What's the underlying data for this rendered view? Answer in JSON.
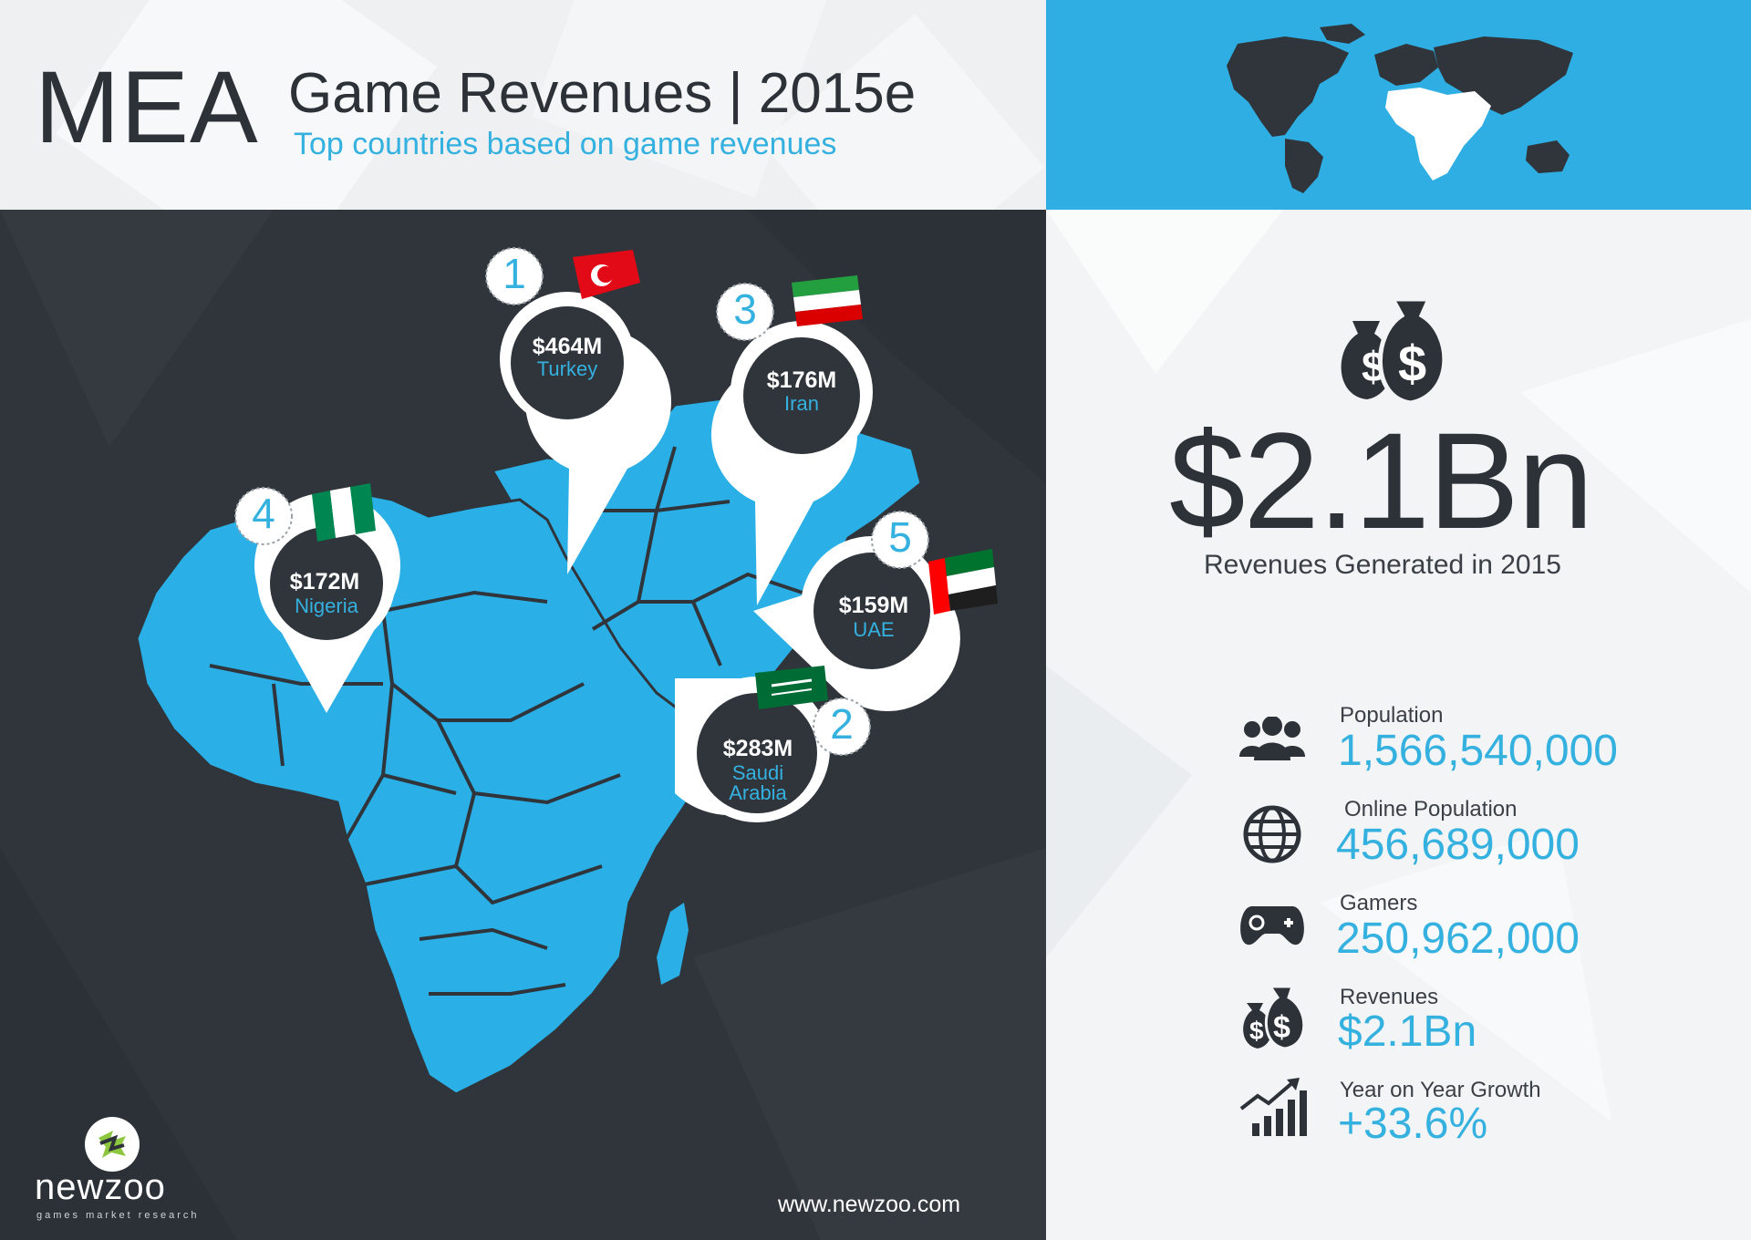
{
  "header": {
    "region": "MEA",
    "title": "Game Revenues | 2015e",
    "subtitle": "Top countries based on game revenues"
  },
  "pins": [
    {
      "rank": "1",
      "value": "$464M",
      "country": "Turkey",
      "flag": "turkey-flag-icon"
    },
    {
      "rank": "2",
      "value": "$283M",
      "country": "Saudi Arabia",
      "flag": "saudi-arabia-flag-icon"
    },
    {
      "rank": "3",
      "value": "$176M",
      "country": "Iran",
      "flag": "iran-flag-icon"
    },
    {
      "rank": "4",
      "value": "$172M",
      "country": "Nigeria",
      "flag": "nigeria-flag-icon"
    },
    {
      "rank": "5",
      "value": "$159M",
      "country": "UAE",
      "flag": "uae-flag-icon"
    }
  ],
  "summary": {
    "total_revenue": "$2.1Bn",
    "total_label": "Revenues Generated in 2015",
    "icon": "money-bags-icon"
  },
  "stats": [
    {
      "label": "Population",
      "value": "1,566,540,000",
      "icon": "people-icon"
    },
    {
      "label": "Online Population",
      "value": "456,689,000",
      "icon": "globe-icon"
    },
    {
      "label": "Gamers",
      "value": "250,962,000",
      "icon": "gamepad-icon"
    },
    {
      "label": "Revenues",
      "value": "$2.1Bn",
      "icon": "money-bags-icon"
    },
    {
      "label": "Year on Year Growth",
      "value": "+33.6%",
      "icon": "growth-chart-icon"
    }
  ],
  "footer": {
    "logo": "newzoo",
    "logo_tagline": "games market research",
    "website": "www.newzoo.com"
  },
  "colors": {
    "accent": "#35b1e0",
    "dark": "#2f353b",
    "text": "#2c3238"
  }
}
